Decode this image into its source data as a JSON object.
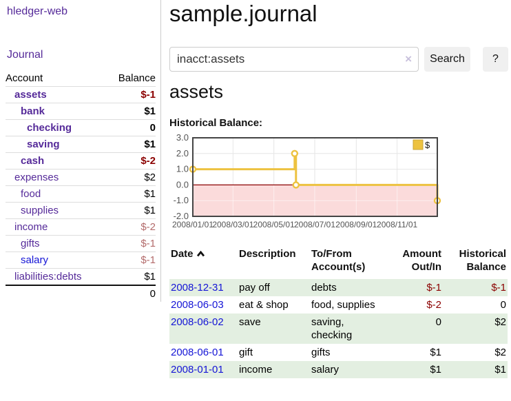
{
  "app": {
    "brand": "hledger-web",
    "nav_journal": "Journal"
  },
  "colors": {
    "accent_purple": "#552a99",
    "link_blue": "#1414d6",
    "negative_strong": "#8b0000",
    "negative_muted": "#b36b6b",
    "row_green": "#e3efe1",
    "chart_line": "#edc240"
  },
  "sidebar": {
    "accounts_header": {
      "account": "Account",
      "balance": "Balance"
    },
    "accounts": [
      {
        "name": "assets",
        "depth": 1,
        "balance": "$-1",
        "bold": true,
        "link_color": "purple",
        "balance_style": "negative-strong"
      },
      {
        "name": "bank",
        "depth": 2,
        "balance": "$1",
        "bold": true,
        "link_color": "purple",
        "balance_style": ""
      },
      {
        "name": "checking",
        "depth": 3,
        "balance": "0",
        "bold": true,
        "link_color": "purple",
        "balance_style": ""
      },
      {
        "name": "saving",
        "depth": 3,
        "balance": "$1",
        "bold": true,
        "link_color": "purple",
        "balance_style": ""
      },
      {
        "name": "cash",
        "depth": 2,
        "balance": "$-2",
        "bold": true,
        "link_color": "purple",
        "balance_style": "negative-strong"
      },
      {
        "name": "expenses",
        "depth": 1,
        "balance": "$2",
        "bold": false,
        "link_color": "purple",
        "balance_style": ""
      },
      {
        "name": "food",
        "depth": 2,
        "balance": "$1",
        "bold": false,
        "link_color": "purple",
        "balance_style": ""
      },
      {
        "name": "supplies",
        "depth": 2,
        "balance": "$1",
        "bold": false,
        "link_color": "purple",
        "balance_style": ""
      },
      {
        "name": "income",
        "depth": 1,
        "balance": "$-2",
        "bold": false,
        "link_color": "purple",
        "balance_style": "negative-muted"
      },
      {
        "name": "gifts",
        "depth": 2,
        "balance": "$-1",
        "bold": false,
        "link_color": "purple",
        "balance_style": "negative-muted"
      },
      {
        "name": "salary",
        "depth": 2,
        "balance": "$-1",
        "bold": false,
        "link_color": "blue",
        "balance_style": "negative-muted"
      },
      {
        "name": "liabilities:debts",
        "depth": 1,
        "balance": "$1",
        "bold": false,
        "link_color": "purple",
        "balance_style": ""
      }
    ],
    "total": "0"
  },
  "main": {
    "title": "sample.journal",
    "search": {
      "value": "inacct:assets",
      "clear_label": "×",
      "button_label": "Search",
      "help_label": "?"
    },
    "account_heading": "assets"
  },
  "chart_data": {
    "type": "line",
    "title": "Historical Balance:",
    "series": [
      {
        "name": "$",
        "step": true,
        "color": "#edc240",
        "points": [
          {
            "date": "2008-01-01",
            "value": 1
          },
          {
            "date": "2008-06-01",
            "value": 2
          },
          {
            "date": "2008-06-03",
            "value": 0
          },
          {
            "date": "2008-12-31",
            "value": -1
          }
        ]
      }
    ],
    "ylim": [
      -2.0,
      3.0
    ],
    "yticks": [
      3.0,
      2.0,
      1.0,
      0.0,
      -1.0,
      -2.0
    ],
    "xticks": [
      "2008/01/01",
      "2008/03/01",
      "2008/05/01",
      "2008/07/01",
      "2008/09/01",
      "2008/11/01"
    ],
    "xrange": [
      "2008-01-01",
      "2008-12-31"
    ],
    "grid": true,
    "negative_fill": "#fbdbdb",
    "zero_line_color": "#8b0000",
    "border_color": "#444",
    "legend": "$",
    "legend_position": "top-right"
  },
  "register": {
    "columns": [
      "Date",
      "Description",
      "To/From Account(s)",
      "Amount Out/In",
      "Historical Balance"
    ],
    "sort": {
      "column": "Date",
      "direction": "ascending"
    },
    "rows": [
      {
        "date": "2008-12-31",
        "description": "pay off",
        "accounts": "debts",
        "amount": "$-1",
        "balance": "$-1",
        "amount_negative": true,
        "balance_negative": true
      },
      {
        "date": "2008-06-03",
        "description": "eat & shop",
        "accounts": "food, supplies",
        "amount": "$-2",
        "balance": "0",
        "amount_negative": true,
        "balance_negative": false
      },
      {
        "date": "2008-06-02",
        "description": "save",
        "accounts": "saving, checking",
        "amount": "0",
        "balance": "$2",
        "amount_negative": false,
        "balance_negative": false
      },
      {
        "date": "2008-06-01",
        "description": "gift",
        "accounts": "gifts",
        "amount": "$1",
        "balance": "$2",
        "amount_negative": false,
        "balance_negative": false
      },
      {
        "date": "2008-01-01",
        "description": "income",
        "accounts": "salary",
        "amount": "$1",
        "balance": "$1",
        "amount_negative": false,
        "balance_negative": false
      }
    ]
  }
}
